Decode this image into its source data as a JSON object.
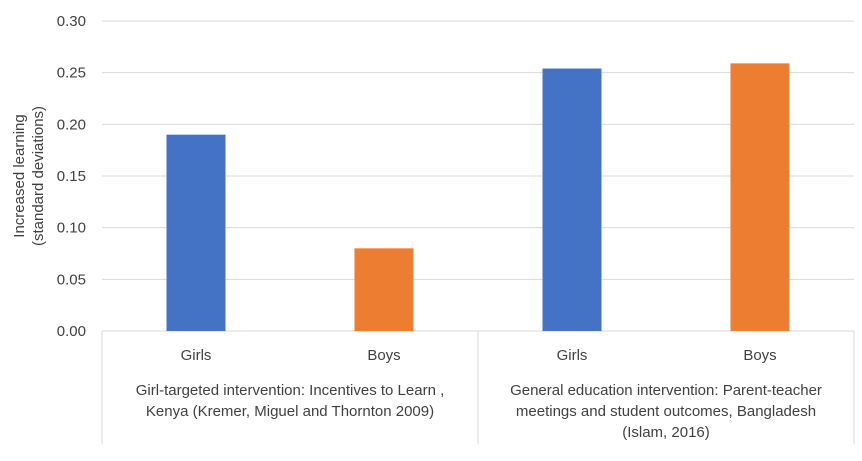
{
  "chart_data": {
    "type": "bar",
    "ylabel_lines": [
      "Increased learning",
      "(standard deviations)"
    ],
    "ylim": [
      0,
      0.3
    ],
    "yticks": [
      "0.00",
      "0.05",
      "0.10",
      "0.15",
      "0.20",
      "0.25",
      "0.30"
    ],
    "ytick_values": [
      0,
      0.05,
      0.1,
      0.15,
      0.2,
      0.25,
      0.3
    ],
    "grid": true,
    "groups": [
      {
        "label_lines": [
          "Girl-targeted intervention: Incentives to Learn ,",
          "Kenya (Kremer, Miguel and Thornton 2009)"
        ],
        "bars": [
          {
            "category": "Girls",
            "value": 0.19,
            "color": "#4472C4"
          },
          {
            "category": "Boys",
            "value": 0.08,
            "color": "#ED7D31"
          }
        ]
      },
      {
        "label_lines": [
          "General education intervention: Parent-teacher",
          "meetings and student outcomes, Bangladesh",
          "(Islam, 2016)"
        ],
        "bars": [
          {
            "category": "Girls",
            "value": 0.254,
            "color": "#4472C4"
          },
          {
            "category": "Boys",
            "value": 0.259,
            "color": "#ED7D31"
          }
        ]
      }
    ]
  }
}
